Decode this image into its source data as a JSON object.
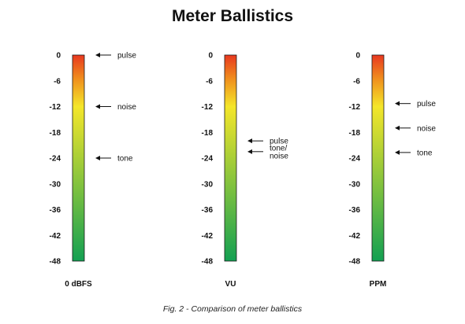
{
  "title": "Meter Ballistics",
  "caption": "Fig. 2 - Comparison of meter ballistics",
  "scale_ticks": [
    "0",
    "-6",
    "-12",
    "-18",
    "-24",
    "-30",
    "-36",
    "-42",
    "-48"
  ],
  "gradient_colors": {
    "top": "#e8381f",
    "mid_orange": "#f0921e",
    "mid_yellow": "#f4e62a",
    "bottom": "#13a052"
  },
  "meters": [
    {
      "label": "0 dBFS",
      "annotations": [
        {
          "lines": [
            "pulse"
          ],
          "level_db": 0
        },
        {
          "lines": [
            "noise"
          ],
          "level_db": -12
        },
        {
          "lines": [
            "tone"
          ],
          "level_db": -24
        }
      ]
    },
    {
      "label": "VU",
      "annotations": [
        {
          "lines": [
            "pulse"
          ],
          "level_db": -20
        },
        {
          "lines": [
            "tone/",
            "noise"
          ],
          "level_db": -22.5
        }
      ]
    },
    {
      "label": "PPM",
      "annotations": [
        {
          "lines": [
            "pulse"
          ],
          "level_db": -11.3
        },
        {
          "lines": [
            "noise"
          ],
          "level_db": -17
        },
        {
          "lines": [
            "tone"
          ],
          "level_db": -22.7
        }
      ]
    }
  ]
}
